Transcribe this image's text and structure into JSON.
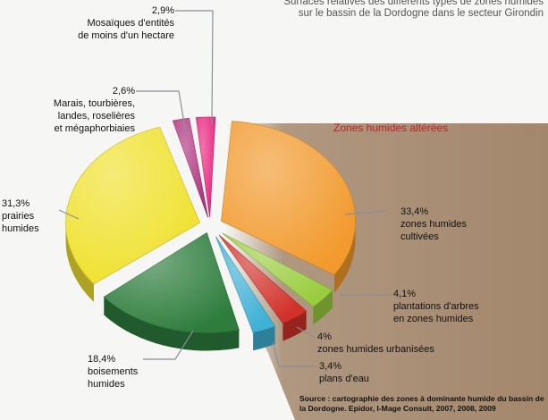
{
  "title": [
    "Surfaces relatives des différents types de zones humides",
    "sur le  bassin de la Dordogne dans le secteur Girondin"
  ],
  "section_title": "Zones humides altérées",
  "source_note": "Source : cartographie des zones à dominante humide du bassin de la Dordogne. Epidor, I-Mage Consult, 2007, 2008, 2009",
  "colors": {
    "background": "#f6f6f4",
    "altered_panel": "#a3876c",
    "section_title": "#c0202a"
  },
  "chart_data": {
    "type": "pie",
    "unit": "%",
    "slices": [
      {
        "value": 33.4,
        "value_label": "33,4%",
        "label_lines": [
          "zones humides",
          "cultivées"
        ],
        "color": "#f29a2e",
        "group": "Zones humides altérées"
      },
      {
        "value": 4.1,
        "value_label": "4,1%",
        "label_lines": [
          "plantations d'arbres",
          "en zones humides"
        ],
        "color": "#9acd3e",
        "group": "Zones humides altérées"
      },
      {
        "value": 4.0,
        "value_label": "4%",
        "label_lines": [
          "zones humides urbanisées"
        ],
        "color": "#d2312a",
        "group": "Zones humides altérées"
      },
      {
        "value": 3.4,
        "value_label": "3,4%",
        "label_lines": [
          "plans d'eau"
        ],
        "color": "#3fb0d6",
        "group": ""
      },
      {
        "value": 18.4,
        "value_label": "18,4%",
        "label_lines": [
          "boisements",
          "humides"
        ],
        "color": "#2e7d3d",
        "group": ""
      },
      {
        "value": 31.3,
        "value_label": "31,3%",
        "label_lines": [
          "prairies",
          "humides"
        ],
        "color": "#f0e12e",
        "group": ""
      },
      {
        "value": 2.6,
        "value_label": "2,6%",
        "label_lines": [
          "Marais, tourbières,",
          "landes, roselières",
          "et mégaphorbiaies"
        ],
        "color": "#b0337f",
        "group": ""
      },
      {
        "value": 2.9,
        "value_label": "2,9%",
        "label_lines": [
          "Mosaïques d'entités",
          "de moins d'un hectare"
        ],
        "color": "#e8267f",
        "group": ""
      }
    ]
  }
}
